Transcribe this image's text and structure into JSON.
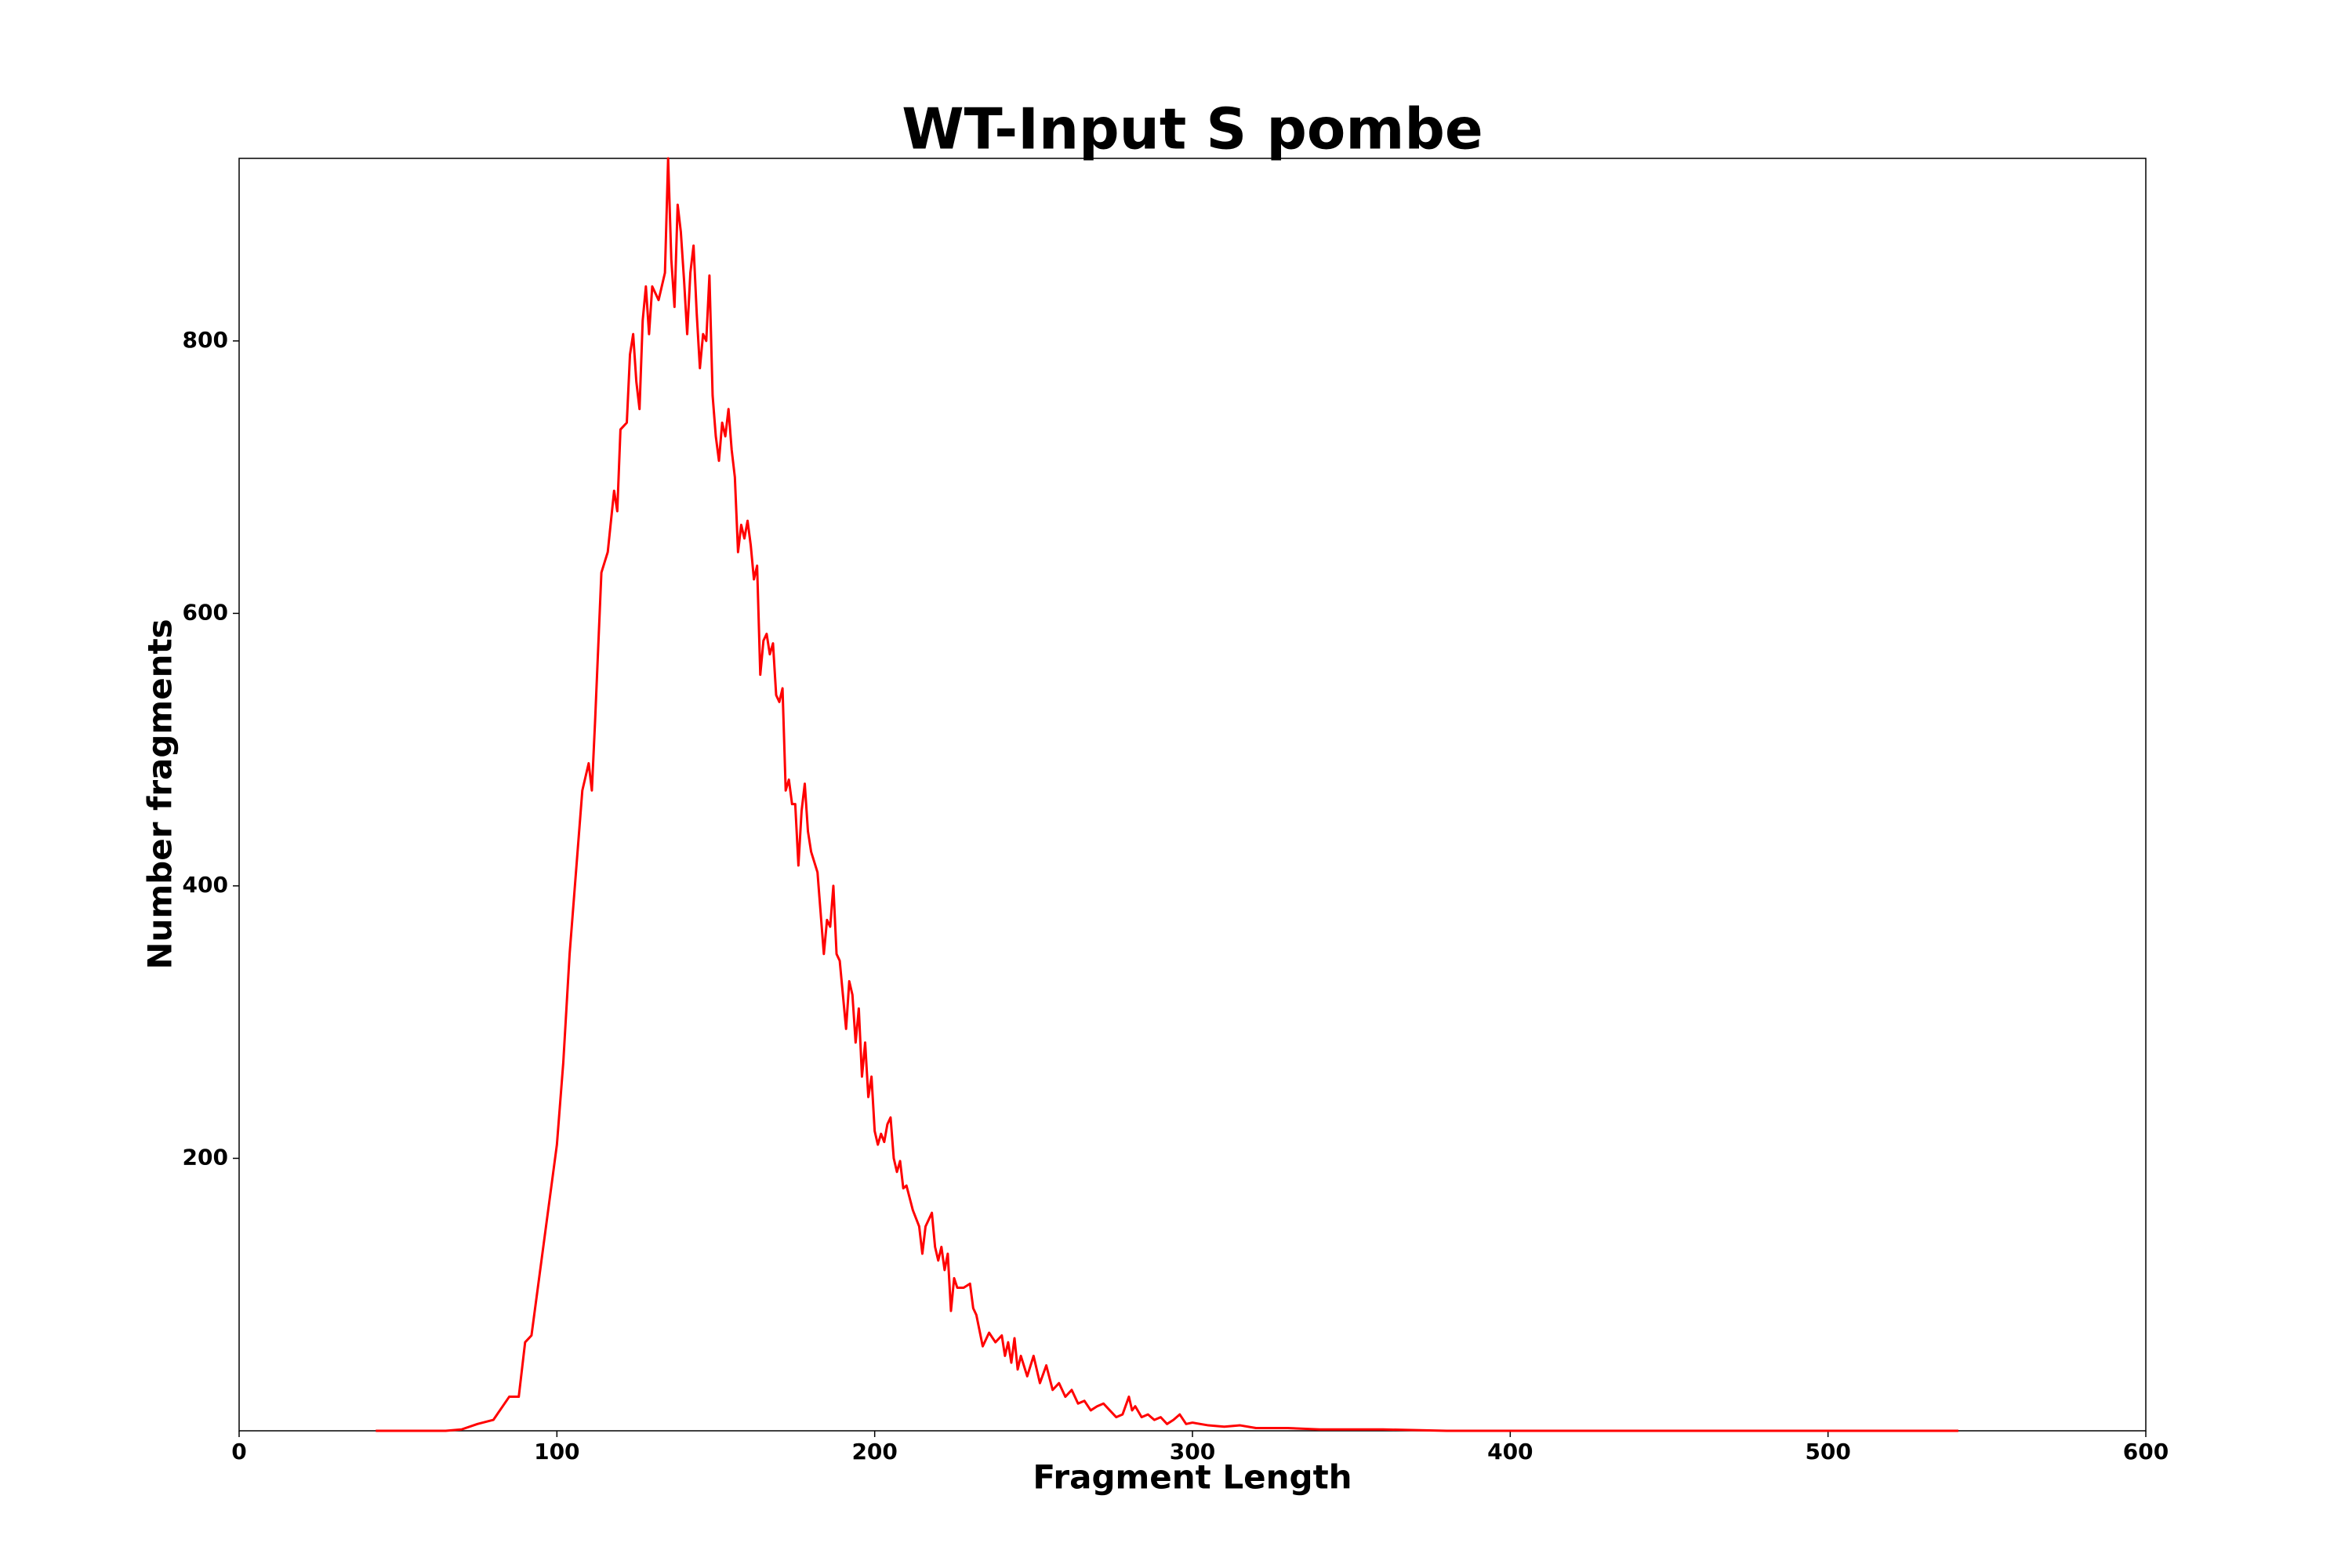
{
  "chart_data": {
    "type": "line",
    "title": "WT-Input S pombe",
    "x_label": "Fragment Length",
    "y_label": "Number fragments",
    "color": "#ff0000",
    "xlim": [
      0,
      600
    ],
    "xticks": [
      0,
      100,
      200,
      300,
      400,
      500,
      600
    ],
    "ylim": [
      0,
      934
    ],
    "yticks": [
      200,
      400,
      600,
      800
    ],
    "grid": false,
    "x": [
      43,
      55,
      65,
      70,
      75,
      80,
      85,
      88,
      90,
      92,
      94,
      96,
      98,
      100,
      102,
      104,
      106,
      108,
      110,
      111,
      112,
      114,
      116,
      118,
      119,
      120,
      122,
      123,
      124,
      125,
      126,
      127,
      128,
      129,
      130,
      131,
      132,
      134,
      135,
      136,
      137,
      138,
      139,
      140,
      141,
      142,
      143,
      144,
      145,
      146,
      147,
      148,
      149,
      150,
      151,
      152,
      153,
      154,
      155,
      156,
      157,
      158,
      159,
      160,
      161,
      162,
      163,
      164,
      165,
      166,
      167,
      168,
      169,
      170,
      171,
      172,
      173,
      174,
      175,
      176,
      177,
      178,
      179,
      180,
      182,
      184,
      185,
      186,
      187,
      188,
      189,
      190,
      191,
      192,
      193,
      194,
      195,
      196,
      197,
      198,
      199,
      200,
      201,
      202,
      203,
      204,
      205,
      206,
      207,
      208,
      209,
      210,
      212,
      214,
      215,
      216,
      218,
      219,
      220,
      221,
      222,
      223,
      224,
      225,
      226,
      228,
      230,
      231,
      232,
      234,
      236,
      238,
      240,
      241,
      242,
      243,
      244,
      245,
      246,
      248,
      250,
      252,
      254,
      256,
      258,
      260,
      262,
      264,
      266,
      268,
      270,
      272,
      274,
      276,
      278,
      280,
      281,
      282,
      284,
      286,
      288,
      290,
      292,
      294,
      296,
      298,
      300,
      305,
      310,
      315,
      320,
      330,
      340,
      350,
      360,
      380,
      400,
      450,
      500,
      541
    ],
    "values": [
      0,
      0,
      0,
      1,
      5,
      8,
      25,
      25,
      65,
      70,
      105,
      140,
      175,
      210,
      270,
      350,
      410,
      470,
      490,
      470,
      520,
      630,
      645,
      690,
      675,
      735,
      740,
      790,
      805,
      770,
      750,
      815,
      840,
      805,
      840,
      835,
      830,
      850,
      934,
      860,
      825,
      900,
      880,
      845,
      805,
      850,
      870,
      820,
      780,
      805,
      800,
      848,
      760,
      730,
      712,
      740,
      730,
      750,
      720,
      700,
      645,
      665,
      655,
      668,
      650,
      625,
      635,
      555,
      580,
      585,
      570,
      578,
      540,
      535,
      545,
      470,
      478,
      460,
      460,
      415,
      455,
      475,
      440,
      425,
      410,
      350,
      375,
      370,
      400,
      350,
      345,
      320,
      295,
      330,
      320,
      285,
      310,
      260,
      285,
      245,
      260,
      220,
      210,
      218,
      212,
      225,
      230,
      200,
      190,
      198,
      178,
      180,
      162,
      150,
      130,
      150,
      160,
      135,
      125,
      135,
      118,
      130,
      88,
      112,
      105,
      105,
      108,
      90,
      85,
      62,
      72,
      65,
      70,
      55,
      65,
      50,
      68,
      45,
      55,
      40,
      55,
      35,
      48,
      30,
      35,
      25,
      30,
      20,
      22,
      15,
      18,
      20,
      15,
      10,
      12,
      25,
      15,
      18,
      10,
      12,
      8,
      10,
      5,
      8,
      12,
      5,
      6,
      4,
      3,
      4,
      2,
      2,
      1,
      1,
      1,
      0,
      0,
      0,
      0,
      0
    ]
  }
}
